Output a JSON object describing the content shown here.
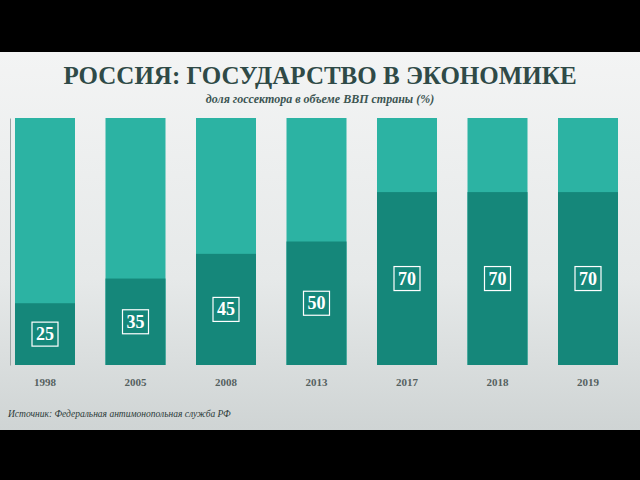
{
  "chart_data": {
    "type": "bar",
    "title": "РОССИЯ: ГОСУДАРСТВО В ЭКОНОМИКЕ",
    "subtitle": "доля госсектора в объеме ВВП страны (%)",
    "source": "Источник: Федеральная антимонопольная служба РФ",
    "categories": [
      "1998",
      "2005",
      "2008",
      "2013",
      "2017",
      "2018",
      "2019"
    ],
    "values": [
      25,
      35,
      45,
      50,
      70,
      70,
      70
    ],
    "color": "#15877a",
    "ylim": [
      0,
      100
    ],
    "data_labels": true,
    "tick_labels": "x"
  }
}
